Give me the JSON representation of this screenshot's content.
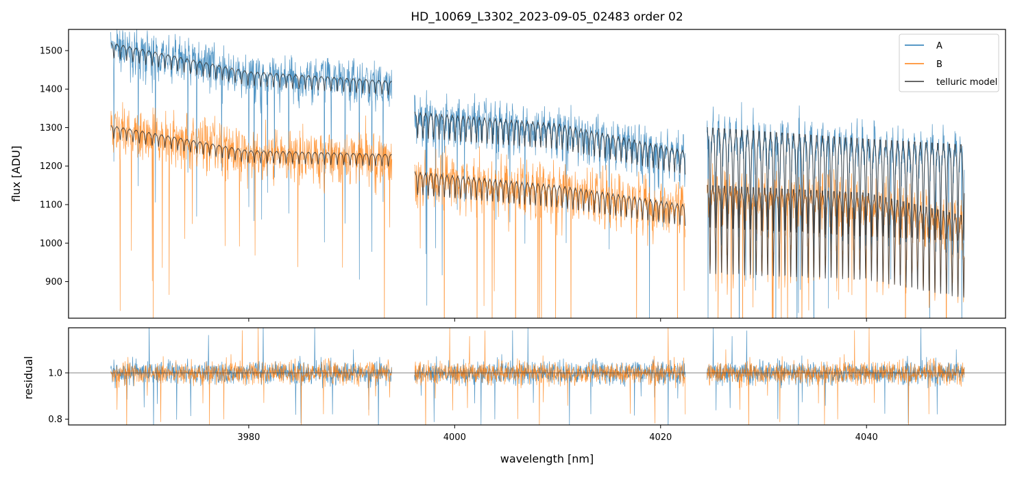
{
  "chart_data": [
    {
      "type": "line",
      "title": "HD_10069_L3302_2023-09-05_02483  order 02",
      "xlabel": "",
      "ylabel": "flux [ADU]",
      "xlim": [
        3962.5,
        4053.5
      ],
      "ylim": [
        805,
        1555
      ],
      "yticks": [
        900,
        1000,
        1100,
        1200,
        1300,
        1400,
        1500
      ],
      "xticks": [
        3980,
        4000,
        4020,
        4040
      ],
      "show_x_tick_labels": false,
      "legend_position": "top-right",
      "segments": [
        [
          3966.6,
          3993.9
        ],
        [
          3996.1,
          4022.4
        ],
        [
          4024.5,
          4049.5
        ]
      ],
      "series": [
        {
          "name": "A",
          "color": "#1f77b4",
          "model_anchors": {
            "x": [
              3966.6,
              3980,
              3993.9,
              3996.1,
              4010,
              4022.4,
              4024.5,
              4040,
              4049.5
            ],
            "y": [
              1520,
              1445,
              1420,
              1340,
              1310,
              1240,
              1300,
              1270,
              1255
            ]
          }
        },
        {
          "name": "B",
          "color": "#ff7f0e",
          "model_anchors": {
            "x": [
              3966.6,
              3980,
              3993.9,
              3996.1,
              4010,
              4022.4,
              4024.5,
              4040,
              4049.5
            ],
            "y": [
              1305,
              1240,
              1230,
              1185,
              1150,
              1100,
              1150,
              1130,
              1070
            ]
          }
        },
        {
          "name": "telluric model",
          "color": "#333333"
        }
      ]
    },
    {
      "type": "line",
      "title": "",
      "xlabel": "wavelength [nm]",
      "ylabel": "residual",
      "xlim": [
        3962.5,
        4053.5
      ],
      "ylim": [
        0.775,
        1.195
      ],
      "yticks": [
        0.8,
        1.0
      ],
      "ytick_labels": [
        "0.8",
        "1.0"
      ],
      "xticks": [
        3980,
        4000,
        4020,
        4040
      ],
      "xtick_labels": [
        "3980",
        "4000",
        "4020",
        "4040"
      ],
      "reference_line": 1.0,
      "series": [
        {
          "name": "A",
          "color": "#1f77b4"
        },
        {
          "name": "B",
          "color": "#ff7f0e"
        }
      ]
    }
  ]
}
